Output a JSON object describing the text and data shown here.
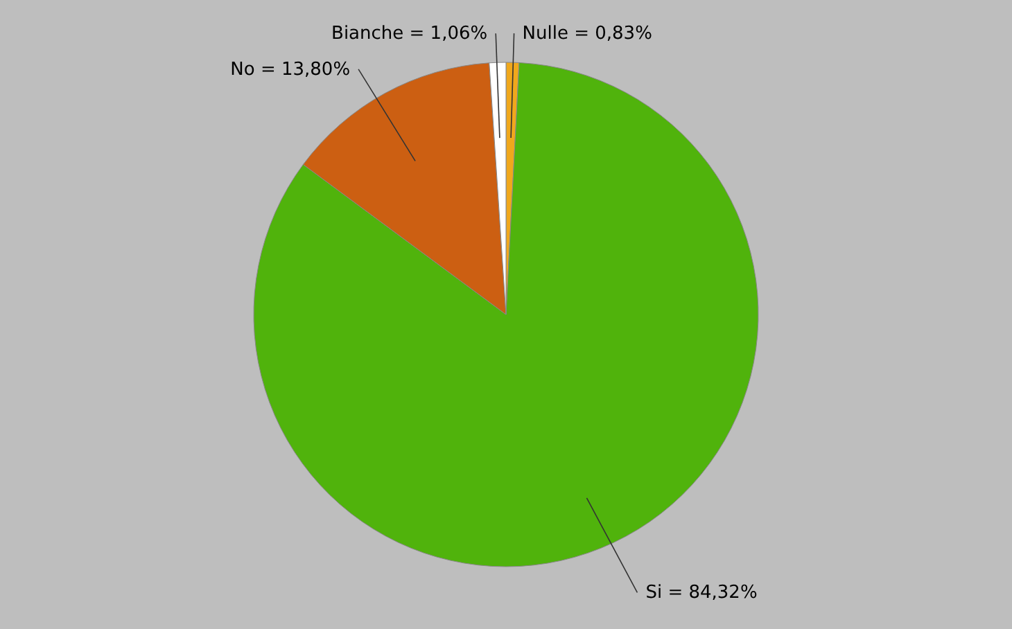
{
  "chart_data": {
    "type": "pie",
    "categories": [
      "Nulle",
      "Si",
      "No",
      "Bianche"
    ],
    "values": [
      0.83,
      84.32,
      13.8,
      1.06
    ],
    "colors": [
      "#f0a81c",
      "#50b30c",
      "#cc5f12",
      "#ffffff"
    ],
    "value_labels": [
      "= 0,83%",
      "= 84,32%",
      "= 13,80%",
      "= 1,06%"
    ],
    "legend": false
  }
}
